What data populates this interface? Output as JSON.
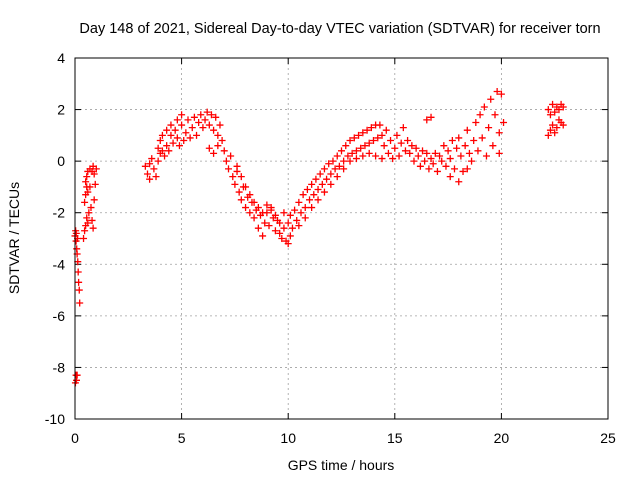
{
  "chart_data": {
    "type": "scatter",
    "title": "Day 148 of 2021, Sidereal Day-to-day VTEC variation (SDTVAR) for receiver torn",
    "xlabel": "GPS time / hours",
    "ylabel": "SDTVAR / TECUs",
    "xlim": [
      0,
      25
    ],
    "ylim": [
      -10,
      4
    ],
    "xticks": [
      0,
      5,
      10,
      15,
      20,
      25
    ],
    "yticks": [
      -10,
      -8,
      -6,
      -4,
      -2,
      0,
      2,
      4
    ],
    "grid": true,
    "legend": "none",
    "series": [
      {
        "name": "SDTVAR",
        "color": "#ff0000",
        "marker": "+",
        "points": [
          [
            0.0,
            -2.9
          ],
          [
            0.03,
            -2.7
          ],
          [
            0.05,
            -3.1
          ],
          [
            0.06,
            -2.8
          ],
          [
            0.08,
            -3.4
          ],
          [
            0.1,
            -3.6
          ],
          [
            0.12,
            -3.0
          ],
          [
            0.13,
            -3.9
          ],
          [
            0.15,
            -4.3
          ],
          [
            0.17,
            -4.7
          ],
          [
            0.2,
            -5.0
          ],
          [
            0.22,
            -5.5
          ],
          [
            0.05,
            -8.3
          ],
          [
            0.07,
            -8.5
          ],
          [
            0.1,
            -8.3
          ],
          [
            0.02,
            -8.6
          ],
          [
            0.4,
            -3.0
          ],
          [
            0.45,
            -2.7
          ],
          [
            0.5,
            -2.5
          ],
          [
            0.55,
            -2.2
          ],
          [
            0.6,
            -2.4
          ],
          [
            0.65,
            -2.0
          ],
          [
            0.45,
            -1.6
          ],
          [
            0.5,
            -1.3
          ],
          [
            0.55,
            -1.0
          ],
          [
            0.5,
            -0.8
          ],
          [
            0.55,
            -0.6
          ],
          [
            0.6,
            -0.4
          ],
          [
            0.7,
            -0.3
          ],
          [
            0.8,
            -0.4
          ],
          [
            0.9,
            -0.5
          ],
          [
            0.6,
            -1.2
          ],
          [
            0.7,
            -1.0
          ],
          [
            0.75,
            -1.8
          ],
          [
            0.8,
            -2.3
          ],
          [
            0.85,
            -2.6
          ],
          [
            0.9,
            -1.5
          ],
          [
            0.95,
            -0.9
          ],
          [
            1.0,
            -0.3
          ],
          [
            0.85,
            -0.2
          ],
          [
            3.3,
            -0.2
          ],
          [
            3.4,
            -0.5
          ],
          [
            3.5,
            -0.7
          ],
          [
            3.5,
            -0.1
          ],
          [
            3.6,
            0.1
          ],
          [
            3.7,
            -0.3
          ],
          [
            3.8,
            -0.6
          ],
          [
            3.9,
            0.0
          ],
          [
            4.0,
            0.3
          ],
          [
            3.9,
            0.5
          ],
          [
            4.0,
            0.8
          ],
          [
            4.1,
            0.4
          ],
          [
            4.1,
            1.0
          ],
          [
            4.2,
            0.2
          ],
          [
            4.3,
            0.6
          ],
          [
            4.3,
            1.2
          ],
          [
            4.4,
            0.4
          ],
          [
            4.5,
            1.0
          ],
          [
            4.5,
            1.4
          ],
          [
            4.6,
            0.7
          ],
          [
            4.7,
            1.2
          ],
          [
            4.8,
            0.9
          ],
          [
            4.8,
            1.6
          ],
          [
            4.9,
            0.6
          ],
          [
            5.0,
            1.4
          ],
          [
            5.0,
            1.8
          ],
          [
            5.1,
            0.8
          ],
          [
            5.2,
            1.1
          ],
          [
            5.3,
            1.6
          ],
          [
            5.4,
            0.9
          ],
          [
            5.5,
            1.3
          ],
          [
            5.6,
            1.7
          ],
          [
            5.7,
            1.0
          ],
          [
            5.8,
            1.5
          ],
          [
            5.9,
            1.8
          ],
          [
            6.0,
            1.3
          ],
          [
            6.1,
            1.6
          ],
          [
            6.2,
            1.9
          ],
          [
            6.3,
            1.4
          ],
          [
            6.4,
            1.8
          ],
          [
            6.5,
            1.2
          ],
          [
            6.6,
            1.7
          ],
          [
            6.7,
            1.0
          ],
          [
            6.8,
            1.4
          ],
          [
            6.3,
            0.5
          ],
          [
            6.5,
            0.3
          ],
          [
            6.7,
            0.6
          ],
          [
            6.9,
            0.8
          ],
          [
            7.0,
            0.4
          ],
          [
            7.1,
            0.0
          ],
          [
            7.2,
            -0.3
          ],
          [
            7.3,
            0.2
          ],
          [
            7.4,
            -0.6
          ],
          [
            7.5,
            -0.9
          ],
          [
            7.6,
            -0.4
          ],
          [
            7.7,
            -1.2
          ],
          [
            7.8,
            -1.5
          ],
          [
            7.9,
            -1.0
          ],
          [
            8.0,
            -1.8
          ],
          [
            8.1,
            -1.4
          ],
          [
            8.2,
            -2.0
          ],
          [
            8.3,
            -1.6
          ],
          [
            8.4,
            -2.2
          ],
          [
            8.5,
            -1.9
          ],
          [
            8.6,
            -2.6
          ],
          [
            8.7,
            -2.1
          ],
          [
            8.8,
            -2.9
          ],
          [
            8.9,
            -2.4
          ],
          [
            9.0,
            -2.0
          ],
          [
            9.1,
            -2.5
          ],
          [
            9.2,
            -1.8
          ],
          [
            9.3,
            -2.2
          ],
          [
            9.4,
            -2.7
          ],
          [
            9.5,
            -2.3
          ],
          [
            9.6,
            -2.8
          ],
          [
            9.7,
            -3.0
          ],
          [
            9.8,
            -2.6
          ],
          [
            9.9,
            -3.1
          ],
          [
            10.0,
            -3.2
          ],
          [
            10.1,
            -2.9
          ],
          [
            7.6,
            -0.2
          ],
          [
            7.8,
            -0.6
          ],
          [
            8.0,
            -1.0
          ],
          [
            8.2,
            -1.3
          ],
          [
            8.4,
            -1.6
          ],
          [
            8.6,
            -1.8
          ],
          [
            8.8,
            -2.0
          ],
          [
            9.0,
            -1.7
          ],
          [
            9.2,
            -1.9
          ],
          [
            9.4,
            -2.1
          ],
          [
            9.6,
            -2.4
          ],
          [
            9.8,
            -2.0
          ],
          [
            10.0,
            -2.4
          ],
          [
            10.1,
            -2.1
          ],
          [
            10.2,
            -2.6
          ],
          [
            10.3,
            -1.9
          ],
          [
            10.4,
            -2.3
          ],
          [
            10.5,
            -1.6
          ],
          [
            10.6,
            -2.0
          ],
          [
            10.7,
            -1.3
          ],
          [
            10.8,
            -1.8
          ],
          [
            10.9,
            -1.1
          ],
          [
            11.0,
            -1.5
          ],
          [
            11.1,
            -0.9
          ],
          [
            11.2,
            -1.3
          ],
          [
            11.3,
            -0.7
          ],
          [
            11.4,
            -1.1
          ],
          [
            11.5,
            -0.5
          ],
          [
            11.6,
            -0.9
          ],
          [
            11.7,
            -0.3
          ],
          [
            11.8,
            -0.7
          ],
          [
            11.9,
            -0.1
          ],
          [
            12.0,
            -0.5
          ],
          [
            12.1,
            0.0
          ],
          [
            12.2,
            -0.3
          ],
          [
            12.3,
            0.2
          ],
          [
            12.4,
            -0.2
          ],
          [
            12.5,
            0.4
          ],
          [
            12.6,
            0.0
          ],
          [
            12.7,
            0.6
          ],
          [
            12.8,
            0.2
          ],
          [
            12.9,
            0.8
          ],
          [
            13.0,
            0.3
          ],
          [
            13.1,
            0.9
          ],
          [
            13.2,
            0.4
          ],
          [
            13.3,
            1.0
          ],
          [
            13.4,
            0.5
          ],
          [
            13.5,
            1.1
          ],
          [
            13.6,
            0.6
          ],
          [
            13.7,
            1.2
          ],
          [
            13.8,
            0.7
          ],
          [
            13.9,
            1.3
          ],
          [
            14.0,
            0.8
          ],
          [
            14.1,
            1.4
          ],
          [
            14.2,
            0.9
          ],
          [
            14.3,
            1.4
          ],
          [
            14.4,
            1.0
          ],
          [
            14.5,
            0.6
          ],
          [
            14.6,
            1.2
          ],
          [
            14.7,
            0.3
          ],
          [
            14.8,
            0.8
          ],
          [
            14.9,
            0.1
          ],
          [
            10.5,
            -2.5
          ],
          [
            10.8,
            -2.2
          ],
          [
            11.1,
            -1.8
          ],
          [
            11.4,
            -1.5
          ],
          [
            11.7,
            -1.2
          ],
          [
            12.0,
            -0.9
          ],
          [
            12.3,
            -0.6
          ],
          [
            12.6,
            -0.3
          ],
          [
            12.9,
            0.0
          ],
          [
            13.2,
            0.1
          ],
          [
            13.5,
            0.2
          ],
          [
            13.8,
            0.3
          ],
          [
            14.1,
            0.2
          ],
          [
            14.4,
            0.1
          ],
          [
            15.0,
            0.5
          ],
          [
            15.1,
            1.0
          ],
          [
            15.2,
            0.2
          ],
          [
            15.3,
            0.7
          ],
          [
            15.4,
            1.3
          ],
          [
            15.5,
            0.4
          ],
          [
            15.6,
            0.8
          ],
          [
            15.7,
            0.3
          ],
          [
            15.8,
            0.6
          ],
          [
            15.9,
            0.0
          ],
          [
            16.0,
            0.5
          ],
          [
            16.1,
            0.2
          ],
          [
            16.2,
            -0.2
          ],
          [
            16.3,
            0.4
          ],
          [
            16.4,
            0.0
          ],
          [
            16.5,
            0.3
          ],
          [
            16.6,
            -0.3
          ],
          [
            16.7,
            0.1
          ],
          [
            16.8,
            -0.1
          ],
          [
            16.9,
            0.3
          ],
          [
            17.0,
            -0.4
          ],
          [
            17.1,
            0.2
          ],
          [
            17.2,
            0.0
          ],
          [
            17.3,
            0.6
          ],
          [
            17.4,
            -0.2
          ],
          [
            17.5,
            0.4
          ],
          [
            17.6,
            0.1
          ],
          [
            17.7,
            0.8
          ],
          [
            17.8,
            -0.3
          ],
          [
            17.9,
            0.5
          ],
          [
            18.0,
            0.9
          ],
          [
            18.1,
            0.2
          ],
          [
            18.2,
            -0.4
          ],
          [
            18.3,
            0.6
          ],
          [
            18.4,
            1.2
          ],
          [
            18.5,
            0.3
          ],
          [
            18.6,
            0.0
          ],
          [
            18.7,
            0.8
          ],
          [
            18.8,
            1.5
          ],
          [
            18.9,
            0.4
          ],
          [
            19.0,
            1.8
          ],
          [
            19.1,
            0.9
          ],
          [
            19.2,
            2.1
          ],
          [
            19.3,
            0.2
          ],
          [
            19.4,
            1.3
          ],
          [
            19.5,
            2.4
          ],
          [
            19.6,
            0.6
          ],
          [
            19.7,
            1.8
          ],
          [
            19.8,
            2.7
          ],
          [
            19.9,
            1.1
          ],
          [
            20.0,
            2.6
          ],
          [
            20.1,
            1.5
          ],
          [
            19.9,
            0.3
          ],
          [
            16.5,
            1.6
          ],
          [
            16.7,
            1.7
          ],
          [
            18.0,
            -0.8
          ],
          [
            18.4,
            -0.3
          ],
          [
            17.6,
            -0.6
          ],
          [
            22.2,
            2.0
          ],
          [
            22.3,
            1.8
          ],
          [
            22.4,
            2.2
          ],
          [
            22.5,
            1.9
          ],
          [
            22.6,
            2.1
          ],
          [
            22.7,
            2.0
          ],
          [
            22.8,
            2.2
          ],
          [
            22.9,
            2.1
          ],
          [
            22.2,
            1.0
          ],
          [
            22.3,
            1.2
          ],
          [
            22.4,
            1.4
          ],
          [
            22.5,
            1.1
          ],
          [
            22.6,
            1.3
          ],
          [
            22.7,
            1.6
          ],
          [
            22.8,
            1.5
          ],
          [
            22.9,
            1.4
          ]
        ]
      }
    ]
  }
}
